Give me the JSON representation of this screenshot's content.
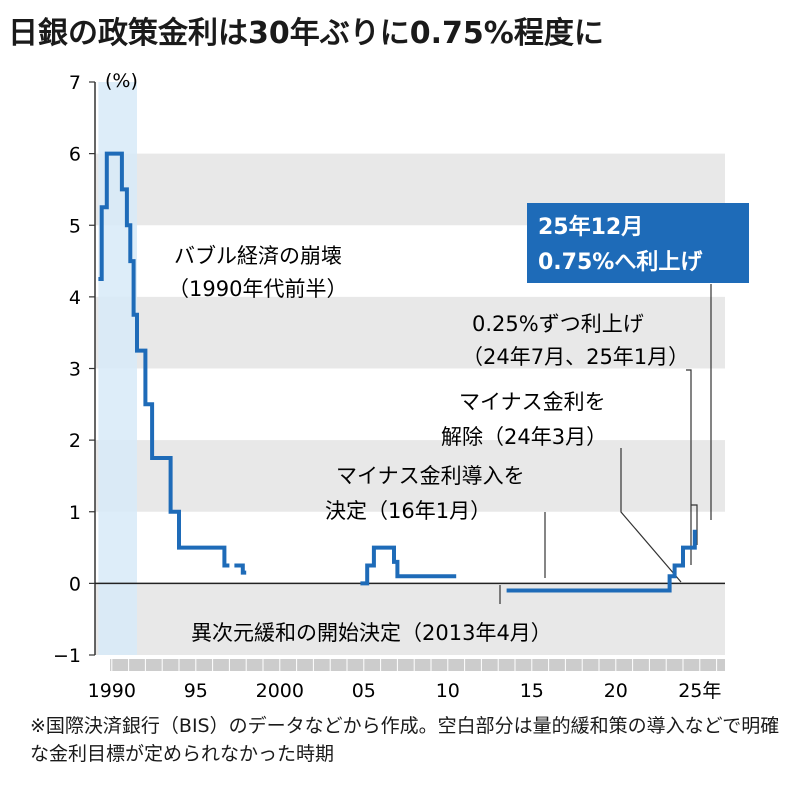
{
  "title": "日銀の政策金利は30年ぶりに0.75%程度に",
  "footnote": "※国際決済銀行（BIS）のデータなどから作成。空白部分は量的緩和策の導入などで明確な金利目標が定められなかった時期",
  "colors": {
    "line": "#1e6bb8",
    "band": "#e8e8e8",
    "highlight": "#d7eaf8",
    "callout_bg": "#1e6bb8",
    "callout_text": "#ffffff"
  },
  "chart_data": {
    "type": "line",
    "title": "日銀の政策金利は30年ぶりに0.75%程度に",
    "ylabel": "(%)",
    "ylim": [
      -1,
      7
    ],
    "xlim": [
      1989,
      2026.5
    ],
    "grid": "horizontal bands",
    "y_ticks": [
      "−1",
      "0",
      "1",
      "2",
      "3",
      "4",
      "5",
      "6",
      "7"
    ],
    "x_ticks": [
      {
        "year": 1990,
        "label": "1990"
      },
      {
        "year": 1995,
        "label": "95"
      },
      {
        "year": 2000,
        "label": "2000"
      },
      {
        "year": 2005,
        "label": "05"
      },
      {
        "year": 2010,
        "label": "10"
      },
      {
        "year": 2015,
        "label": "15"
      },
      {
        "year": 2020,
        "label": "20"
      },
      {
        "year": 2025,
        "label": "25年"
      }
    ],
    "series": [
      {
        "segments": [
          [
            [
              1989.2,
              4.25
            ],
            [
              1989.4,
              4.25
            ],
            [
              1989.4,
              5.25
            ],
            [
              1989.7,
              5.25
            ],
            [
              1989.7,
              6.0
            ],
            [
              1990.6,
              6.0
            ],
            [
              1990.6,
              5.5
            ],
            [
              1990.9,
              5.5
            ],
            [
              1990.9,
              5.0
            ],
            [
              1991.1,
              5.0
            ],
            [
              1991.1,
              4.5
            ],
            [
              1991.3,
              4.5
            ],
            [
              1991.3,
              3.75
            ],
            [
              1991.5,
              3.75
            ],
            [
              1991.5,
              3.25
            ],
            [
              1992.0,
              3.25
            ],
            [
              1992.0,
              2.5
            ],
            [
              1992.4,
              2.5
            ],
            [
              1992.4,
              1.75
            ],
            [
              1993.5,
              1.75
            ],
            [
              1993.5,
              1.0
            ],
            [
              1994.0,
              1.0
            ],
            [
              1994.0,
              0.5
            ],
            [
              1996.7,
              0.5
            ],
            [
              1996.7,
              0.25
            ],
            [
              1997.0,
              0.25
            ]
          ],
          [
            [
              1997.3,
              0.25
            ],
            [
              1997.8,
              0.25
            ],
            [
              1997.8,
              0.15
            ],
            [
              1998.0,
              0.15
            ]
          ],
          [
            [
              2004.8,
              0.0
            ],
            [
              2005.2,
              0.0
            ],
            [
              2005.2,
              0.25
            ],
            [
              2005.6,
              0.25
            ],
            [
              2005.6,
              0.5
            ],
            [
              2006.8,
              0.5
            ],
            [
              2006.8,
              0.3
            ],
            [
              2007.0,
              0.3
            ],
            [
              2007.0,
              0.1
            ],
            [
              2010.5,
              0.1
            ]
          ],
          [
            [
              2013.5,
              -0.1
            ],
            [
              2023.2,
              -0.1
            ],
            [
              2023.2,
              0.1
            ],
            [
              2023.5,
              0.1
            ],
            [
              2023.5,
              0.25
            ],
            [
              2024.0,
              0.25
            ],
            [
              2024.0,
              0.5
            ],
            [
              2024.7,
              0.5
            ],
            [
              2024.7,
              0.75
            ]
          ]
        ]
      }
    ],
    "highlight_x": [
      1989.2,
      1991.5
    ],
    "shaded_x": [
      1989,
      2026.5
    ],
    "callout": {
      "line1": "25年12月",
      "line2": "0.75%へ利上げ"
    },
    "annotations": [
      {
        "text": "バブル経済の崩壊"
      },
      {
        "text": "（1990年代前半）"
      },
      {
        "text": "0.25%ずつ利上げ"
      },
      {
        "text": "（24年7月、25年1月）"
      },
      {
        "text": "マイナス金利を"
      },
      {
        "text": "解除（24年3月）"
      },
      {
        "text": "マイナス金利導入を"
      },
      {
        "text": "決定（16年1月）"
      },
      {
        "text": "異次元緩和の開始決定（2013年4月）"
      }
    ]
  }
}
